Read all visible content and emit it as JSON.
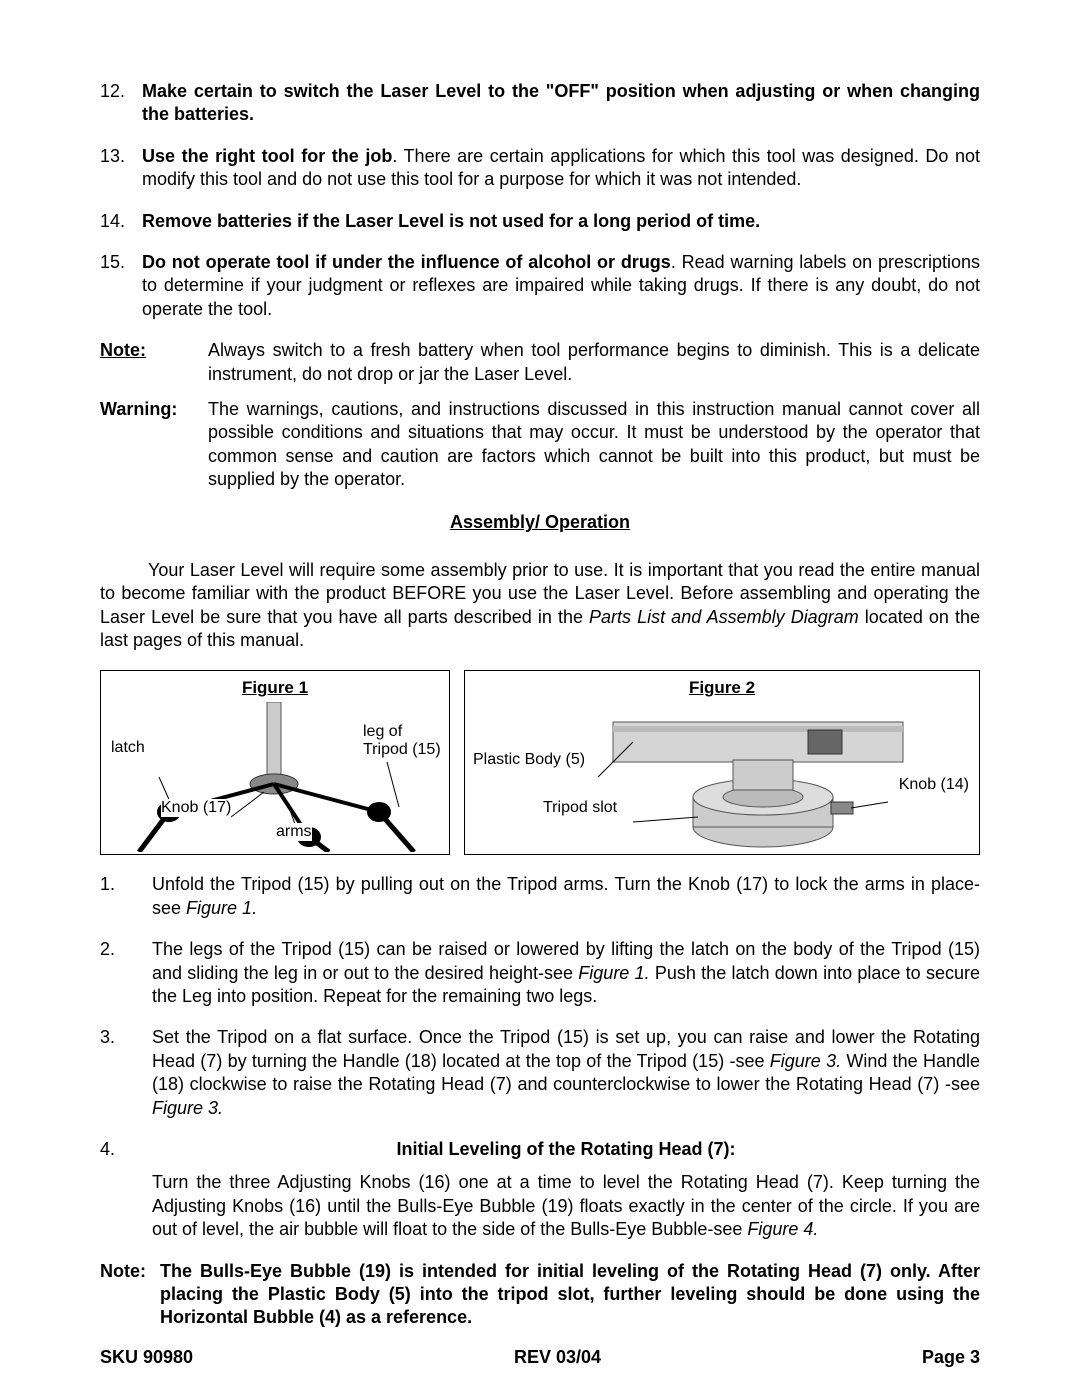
{
  "safety_items": [
    {
      "num": "12.",
      "text": "Make certain to switch the Laser Level to the \"OFF\" position when adjusting or when changing the batteries.",
      "all_bold": true
    },
    {
      "num": "13.",
      "lead_bold": "Use the right tool for the job",
      "rest": ". There are certain applications for which this tool was designed. Do not modify this tool and do not use this tool for a purpose for which it was not intended."
    },
    {
      "num": "14.",
      "text": "Remove batteries if the Laser Level is not used for a long period of time.",
      "all_bold": true
    },
    {
      "num": "15.",
      "lead_bold": "Do not operate tool if under the influence of alcohol or drugs",
      "rest": ".  Read warning labels on prescriptions to determine if your judgment or reflexes are impaired while taking drugs. If there is any doubt, do not operate the tool."
    }
  ],
  "note": {
    "label": "Note:",
    "body": "Always switch to a fresh battery when tool performance begins to diminish.  This is a delicate instrument, do not drop or jar the Laser Level."
  },
  "warning": {
    "label": "Warning:",
    "body": "The warnings, cautions, and instructions discussed in this instruction manual cannot cover all possible conditions and situations that may occur. It must be understood by the operator that common sense and caution are factors which cannot be built into this product, but must be supplied by the operator."
  },
  "assembly_heading": "Assembly/ Operation",
  "intro": {
    "pre": "Your Laser Level will require some assembly prior to use.  It is important that you read the entire manual to become familiar with the product BEFORE you use the Laser Level.  Before assembling and operating the Laser Level be sure that you have all parts described in the ",
    "italic": "Parts List and Assembly Diagram",
    "post": " located on the last pages of this manual."
  },
  "fig1": {
    "title": "Figure 1",
    "labels": {
      "latch": "latch",
      "knob": "Knob (17)",
      "arms": "arms",
      "leg": "leg of\nTripod (15)"
    }
  },
  "fig2": {
    "title": "Figure 2",
    "labels": {
      "body": "Plastic Body (5)",
      "slot": "Tripod slot",
      "knob": "Knob (14)"
    }
  },
  "steps": [
    {
      "num": "1.",
      "segments": [
        {
          "t": "Unfold the Tripod (15) by pulling out on the Tripod arms.  Turn the Knob (17) to lock the arms in place-see "
        },
        {
          "t": "Figure 1.",
          "i": true
        }
      ]
    },
    {
      "num": "2.",
      "segments": [
        {
          "t": "The legs of the Tripod (15) can be raised or lowered by lifting the latch on the body of the Tripod (15) and sliding the leg in or out to the desired height-see "
        },
        {
          "t": "Figure 1.",
          "i": true
        },
        {
          "t": "  Push the latch down into place to secure the Leg into position.  Repeat for the remaining two legs."
        }
      ]
    },
    {
      "num": "3.",
      "segments": [
        {
          "t": "Set the Tripod on a flat surface.  Once the Tripod (15) is set up, you can raise and lower the Rotating Head (7) by turning the Handle (18) located at the top of the Tripod (15) -see "
        },
        {
          "t": "Figure 3.",
          "i": true
        },
        {
          "t": "  Wind the Handle (18) clockwise to raise the Rotating Head (7) and counterclockwise to lower the Rotating Head (7) -see "
        },
        {
          "t": "Figure 3.",
          "i": true
        }
      ]
    },
    {
      "num": "4.",
      "subhead": "Initial Leveling of the Rotating Head (7):",
      "segments": [
        {
          "t": "Turn the three Adjusting Knobs (16) one at a time to level the Rotating Head (7).  Keep turning the Adjusting Knobs (16) until the Bulls-Eye Bubble (19) floats exactly in the center of the circle.  If you are out of level, the air bubble will float to the side of the Bulls-Eye Bubble-see "
        },
        {
          "t": "Figure 4.",
          "i": true
        }
      ]
    }
  ],
  "final_note": {
    "label": "Note:",
    "body": "The Bulls-Eye Bubble (19) is intended for initial leveling of the Rotating Head (7) only. After placing the Plastic Body (5) into the tripod slot, further leveling should be done using the Horizontal Bubble (4) as a reference."
  },
  "footer": {
    "sku": "SKU 90980",
    "rev": "REV 03/04",
    "page": "Page 3"
  }
}
